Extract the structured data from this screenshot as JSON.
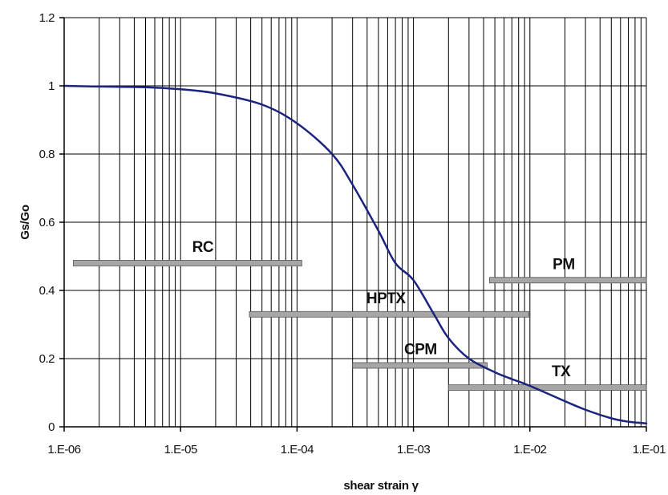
{
  "chart_data": {
    "type": "line",
    "xlabel": "shear strain γ",
    "ylabel": "Gs/Go",
    "x_scale": "log",
    "xlim": [
      1e-06,
      0.1
    ],
    "ylim": [
      0,
      1.2
    ],
    "x_tick_labels": [
      "1.E-06",
      "1.E-05",
      "1.E-04",
      "1.E-03",
      "1.E-02",
      "1.E-01"
    ],
    "y_tick_labels": [
      "0",
      "0.2",
      "0.4",
      "0.6",
      "0.8",
      "1",
      "1.2"
    ],
    "grid": "vertical log gridlines at every minor decade step; horizontal gridlines at major y ticks",
    "legend": "none",
    "series": [
      {
        "color": "#1a237e",
        "x": [
          1e-06,
          2e-06,
          5e-06,
          1e-05,
          2e-05,
          5e-05,
          0.0001,
          0.0002,
          0.0003,
          0.0005,
          0.0007,
          0.001,
          0.0015,
          0.002,
          0.003,
          0.005,
          0.007,
          0.01,
          0.02,
          0.03,
          0.05,
          0.07,
          0.1
        ],
        "y": [
          1.0,
          0.998,
          0.996,
          0.99,
          0.978,
          0.945,
          0.89,
          0.8,
          0.71,
          0.575,
          0.48,
          0.43,
          0.33,
          0.26,
          0.2,
          0.16,
          0.14,
          0.12,
          0.075,
          0.05,
          0.025,
          0.015,
          0.01
        ]
      }
    ],
    "ranges": [
      {
        "label": "RC",
        "x_start": 1.2e-06,
        "x_end": 0.00011,
        "y": 0.48
      },
      {
        "label": "HPTX",
        "x_start": 3.9e-05,
        "x_end": 0.0098,
        "y": 0.33
      },
      {
        "label": "PM",
        "x_start": 0.0045,
        "x_end": 0.1,
        "y": 0.43
      },
      {
        "label": "CPM",
        "x_start": 0.0003,
        "x_end": 0.0043,
        "y": 0.18
      },
      {
        "label": "TX",
        "x_start": 0.002,
        "x_end": 0.1,
        "y": 0.115
      }
    ],
    "range_bar_color": "#a6a6a6",
    "axis_color": "#000000",
    "grid_color": "#000000"
  }
}
